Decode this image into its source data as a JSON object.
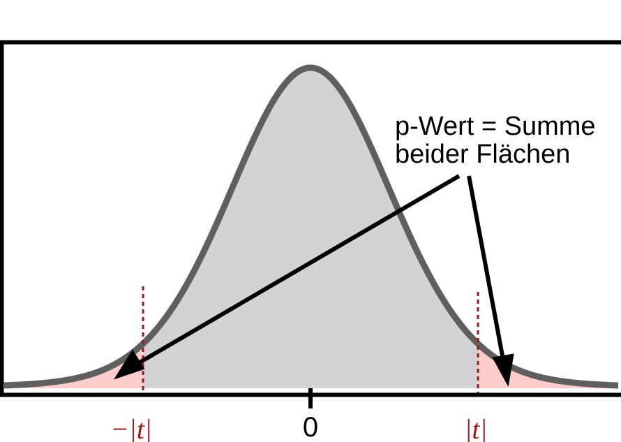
{
  "annotation": {
    "line1": "p-Wert = Summe",
    "line2": "beider Flächen"
  },
  "x_labels": {
    "neg_t": "−|t|",
    "zero": "0",
    "pos_t": "|t|"
  },
  "colors": {
    "curve_stroke": "#5f5f5f",
    "center_fill": "#d3d3d3",
    "tail_fill": "#ffcccc",
    "critical_line": "#a01818",
    "frame": "#000000"
  },
  "chart_data": {
    "type": "area",
    "distribution": "t",
    "critical_value_label": "|t|",
    "shaded_regions": [
      "tails beyond -|t| and |t|"
    ]
  }
}
